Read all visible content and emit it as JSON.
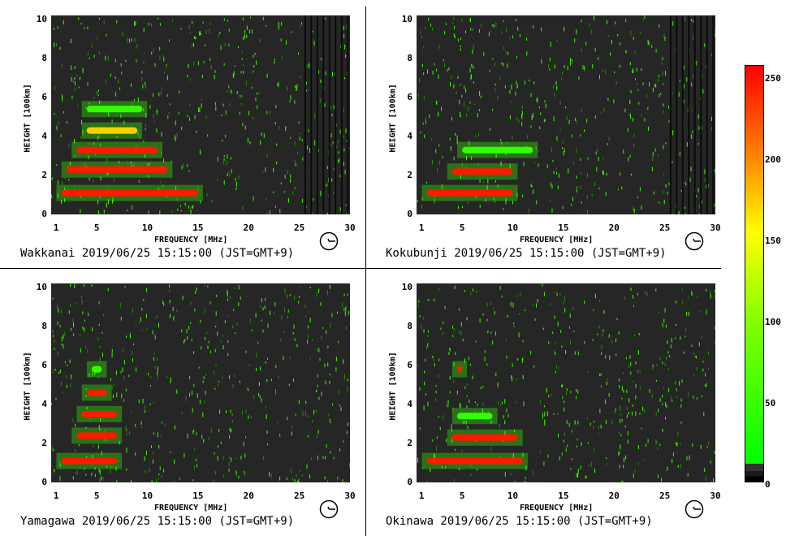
{
  "colorbar": {
    "ticks": [
      "250",
      "200",
      "150",
      "100",
      "50",
      "0"
    ],
    "values": [
      250,
      200,
      150,
      100,
      50,
      0
    ],
    "colors": [
      "#ff0000",
      "#ff8000",
      "#ffff00",
      "#80ff00",
      "#00ff00",
      "#000000"
    ]
  },
  "chart_data": [
    {
      "type": "heatmap",
      "station": "Wakkanai",
      "caption": "Wakkanai 2019/06/25 15:15:00 (JST=GMT+9)",
      "xlabel": "FREQUENCY [MHz]",
      "ylabel": "HEIGHT [100km]",
      "xlim": [
        0.5,
        30
      ],
      "ylim": [
        0,
        10.2
      ],
      "xticks": [
        "1",
        "5",
        "10",
        "15",
        "20",
        "25",
        "30"
      ],
      "yticks": [
        "0",
        "2",
        "4",
        "6",
        "8",
        "10"
      ],
      "traces": [
        {
          "f_start": 1.5,
          "f_end": 15,
          "height": 1.1,
          "level": 250
        },
        {
          "f_start": 2,
          "f_end": 12,
          "height": 2.3,
          "level": 250
        },
        {
          "f_start": 3,
          "f_end": 11,
          "height": 3.3,
          "level": 250
        },
        {
          "f_start": 4,
          "f_end": 9,
          "height": 4.3,
          "level": 150
        },
        {
          "f_start": 4,
          "f_end": 9.5,
          "height": 5.4,
          "level": 80
        }
      ]
    },
    {
      "type": "heatmap",
      "station": "Kokubunji",
      "caption": "Kokubunji 2019/06/25 15:15:00 (JST=GMT+9)",
      "xlabel": "FREQUENCY [MHz]",
      "ylabel": "HEIGHT [100km]",
      "xlim": [
        0.5,
        30
      ],
      "ylim": [
        0,
        10.2
      ],
      "xticks": [
        "1",
        "5",
        "10",
        "15",
        "20",
        "25",
        "30"
      ],
      "yticks": [
        "0",
        "2",
        "4",
        "6",
        "8",
        "10"
      ],
      "traces": [
        {
          "f_start": 1.5,
          "f_end": 10,
          "height": 1.1,
          "level": 250
        },
        {
          "f_start": 4,
          "f_end": 10,
          "height": 2.2,
          "level": 250
        },
        {
          "f_start": 5,
          "f_end": 12,
          "height": 3.3,
          "level": 80
        }
      ]
    },
    {
      "type": "heatmap",
      "station": "Yamagawa",
      "caption": "Yamagawa 2019/06/25 15:15:00 (JST=GMT+9)",
      "xlabel": "FREQUENCY [MHz]",
      "ylabel": "HEIGHT [100km]",
      "xlim": [
        0.5,
        30
      ],
      "ylim": [
        0,
        10.2
      ],
      "xticks": [
        "1",
        "5",
        "10",
        "15",
        "20",
        "25",
        "30"
      ],
      "yticks": [
        "0",
        "2",
        "4",
        "6",
        "8",
        "10"
      ],
      "traces": [
        {
          "f_start": 1.5,
          "f_end": 7,
          "height": 1.1,
          "level": 250
        },
        {
          "f_start": 3,
          "f_end": 7,
          "height": 2.4,
          "level": 250
        },
        {
          "f_start": 3.5,
          "f_end": 7,
          "height": 3.5,
          "level": 250
        },
        {
          "f_start": 4,
          "f_end": 6,
          "height": 4.6,
          "level": 250
        },
        {
          "f_start": 4.5,
          "f_end": 5.5,
          "height": 5.8,
          "level": 80
        }
      ]
    },
    {
      "type": "heatmap",
      "station": "Okinawa",
      "caption": "Okinawa 2019/06/25 15:15:00 (JST=GMT+9)",
      "xlabel": "FREQUENCY [MHz]",
      "ylabel": "HEIGHT [100km]",
      "xlim": [
        0.5,
        30
      ],
      "ylim": [
        0,
        10.2
      ],
      "xticks": [
        "1",
        "5",
        "10",
        "15",
        "20",
        "25",
        "30"
      ],
      "yticks": [
        "0",
        "2",
        "4",
        "6",
        "8",
        "10"
      ],
      "traces": [
        {
          "f_start": 1.5,
          "f_end": 11,
          "height": 1.1,
          "level": 250
        },
        {
          "f_start": 4,
          "f_end": 10.5,
          "height": 2.3,
          "level": 250
        },
        {
          "f_start": 4.5,
          "f_end": 8,
          "height": 3.4,
          "level": 80
        },
        {
          "f_start": 4.5,
          "f_end": 5,
          "height": 5.8,
          "level": 250
        }
      ]
    }
  ]
}
